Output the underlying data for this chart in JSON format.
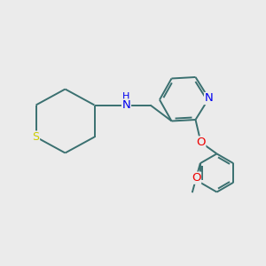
{
  "background_color": "#ebebeb",
  "bond_color": "#3a7070",
  "S_color": "#cccc00",
  "N_color": "#0000ee",
  "O_color": "#ee0000",
  "bond_width": 1.4,
  "font_size": 8.5,
  "figsize": [
    3.0,
    3.0
  ],
  "dpi": 100,
  "xlim": [
    0,
    10
  ],
  "ylim": [
    0,
    10
  ]
}
